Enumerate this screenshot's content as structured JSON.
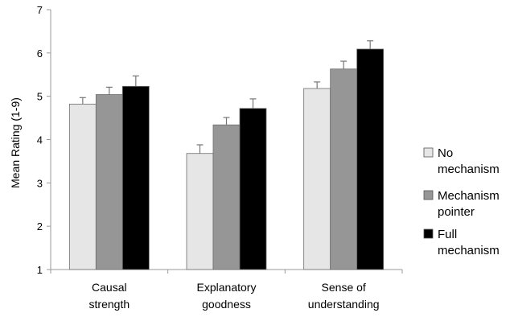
{
  "chart_data": {
    "type": "bar",
    "title": "",
    "xlabel": "",
    "ylabel": "Mean Rating (1-9)",
    "ylim": [
      1,
      7
    ],
    "yticks": [
      1,
      2,
      3,
      4,
      5,
      6,
      7
    ],
    "grid": false,
    "legend_position": "right",
    "categories": [
      [
        "Causal",
        "strength"
      ],
      [
        "Explanatory",
        "goodness"
      ],
      [
        "Sense of",
        "understanding"
      ]
    ],
    "series": [
      {
        "name": [
          "No",
          "mechanism"
        ],
        "color": "#e6e6e6",
        "values": [
          4.82,
          3.68,
          5.18
        ],
        "errors": [
          0.15,
          0.2,
          0.15
        ]
      },
      {
        "name": [
          "Mechanism",
          "pointer"
        ],
        "color": "#969696",
        "values": [
          5.04,
          4.34,
          5.63
        ],
        "errors": [
          0.17,
          0.17,
          0.18
        ]
      },
      {
        "name": [
          "Full",
          "mechanism"
        ],
        "color": "#000000",
        "values": [
          5.23,
          4.72,
          6.09
        ],
        "errors": [
          0.24,
          0.22,
          0.19
        ]
      }
    ]
  }
}
